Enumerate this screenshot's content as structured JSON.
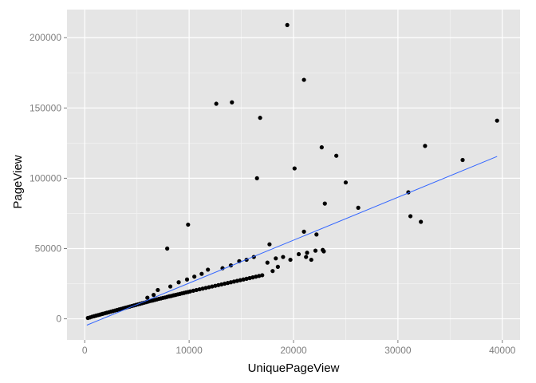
{
  "chart_data": {
    "type": "scatter",
    "title": "",
    "xlabel": "UniquePageView",
    "ylabel": "PageView",
    "xlim": [
      -1700,
      41700
    ],
    "ylim": [
      -15000,
      220000
    ],
    "x_ticks": [
      0,
      10000,
      20000,
      30000,
      40000
    ],
    "x_tick_labels": [
      "0",
      "10000",
      "20000",
      "30000",
      "40000"
    ],
    "y_ticks": [
      0,
      50000,
      100000,
      150000,
      200000
    ],
    "y_tick_labels": [
      "0",
      "50000",
      "100000",
      "150000",
      "200000"
    ],
    "grid": true,
    "colors": {
      "panel": "#e5e5e5",
      "grid_major": "#ffffff",
      "grid_minor": "#f2f2f2",
      "points": "#000000",
      "fit_line": "#3366ff"
    },
    "fit_line": {
      "x": [
        200,
        39500
      ],
      "y": [
        -4500,
        115500
      ]
    },
    "series": [
      {
        "name": "points",
        "x": [
          300,
          500,
          700,
          900,
          1100,
          1300,
          1500,
          1700,
          1900,
          2100,
          2300,
          2500,
          2700,
          2900,
          3100,
          3300,
          3500,
          3700,
          3900,
          4100,
          4300,
          4500,
          4700,
          4900,
          5100,
          5300,
          5500,
          5700,
          5900,
          6100,
          6300,
          6500,
          6700,
          6900,
          7100,
          7300,
          7500,
          7700,
          7900,
          8100,
          8300,
          8500,
          8700,
          8900,
          9100,
          9300,
          9500,
          9700,
          9900,
          10100,
          10400,
          10700,
          11000,
          11300,
          11600,
          11900,
          12200,
          12500,
          12800,
          13100,
          13400,
          13700,
          14000,
          14300,
          14600,
          14900,
          15200,
          15500,
          15800,
          16100,
          16400,
          16700,
          17000,
          6000,
          6600,
          7000,
          8200,
          9000,
          9800,
          10500,
          11200,
          11800,
          13200,
          14000,
          14800,
          15500,
          16200,
          17500,
          18300,
          19000,
          19700,
          20500,
          21300,
          22100,
          22800,
          18000,
          18500,
          21200,
          21700,
          22900,
          7900,
          9900,
          12600,
          14100,
          16800,
          16500,
          17700,
          19400,
          20100,
          21000,
          22200,
          23000,
          22700,
          24100,
          25000,
          26200,
          21000,
          31000,
          31200,
          32200,
          32600,
          36200,
          39500
        ],
        "y": [
          600,
          1000,
          1500,
          1900,
          2300,
          2700,
          3100,
          3500,
          3900,
          4300,
          4700,
          5100,
          5500,
          5900,
          6300,
          6700,
          7100,
          7500,
          7900,
          8300,
          8700,
          9100,
          9500,
          9900,
          10300,
          10700,
          11100,
          11500,
          11900,
          12300,
          12700,
          13000,
          13400,
          13800,
          14200,
          14500,
          14900,
          15200,
          15600,
          16000,
          16300,
          16700,
          17000,
          17400,
          17700,
          18100,
          18400,
          18800,
          19100,
          19500,
          20000,
          20500,
          21000,
          21500,
          22000,
          22500,
          23000,
          23500,
          24000,
          24500,
          25000,
          25500,
          26000,
          26500,
          27000,
          27500,
          28000,
          28500,
          29000,
          29500,
          30000,
          30500,
          31000,
          15000,
          17000,
          20500,
          23000,
          26000,
          28000,
          30000,
          32000,
          35000,
          36000,
          38000,
          41000,
          42000,
          44000,
          40000,
          43000,
          44000,
          42000,
          46000,
          47000,
          48500,
          49000,
          34000,
          37000,
          44000,
          42000,
          48000,
          50000,
          67000,
          153000,
          154000,
          143000,
          100000,
          53000,
          209000,
          107000,
          170000,
          60000,
          82000,
          122000,
          116000,
          97000,
          79000,
          62000,
          90000,
          73000,
          69000,
          123000,
          113000,
          141000
        ]
      }
    ]
  }
}
